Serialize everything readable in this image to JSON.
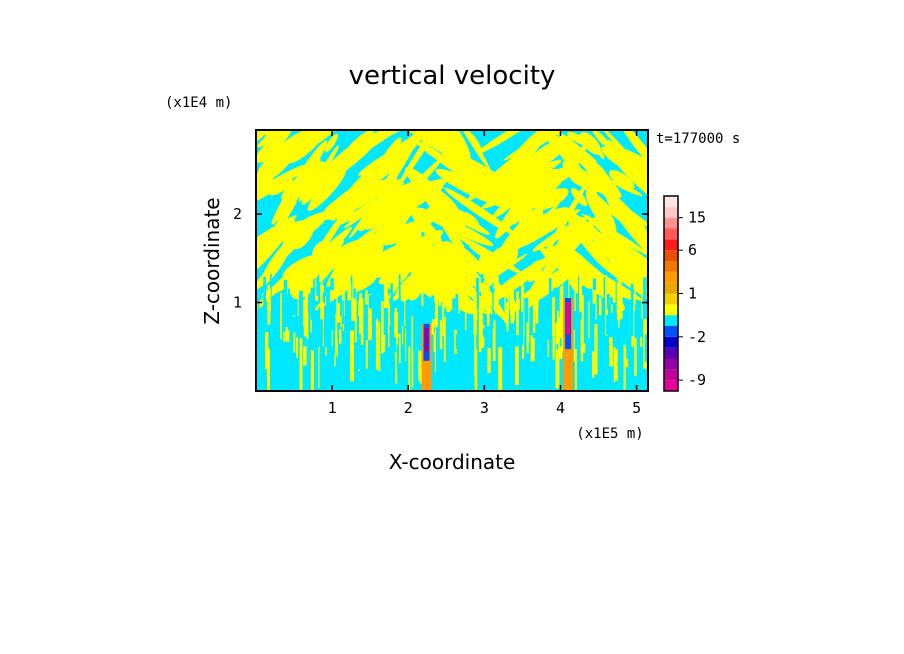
{
  "chart_data": {
    "type": "heatmap",
    "title": "vertical velocity",
    "xlabel": "X-coordinate",
    "ylabel": "Z-coordinate",
    "x_unit": "(x1E5 m)",
    "y_unit": "(x1E4 m)",
    "time_label": "t=177000 s",
    "xlim": [
      0,
      5.15
    ],
    "ylim": [
      0,
      2.95
    ],
    "x_ticks": [
      "1",
      "2",
      "3",
      "4",
      "5"
    ],
    "y_ticks": [
      "1",
      "2"
    ],
    "x_tick_values": [
      1,
      2,
      3,
      4,
      5
    ],
    "y_tick_values": [
      1,
      2
    ],
    "colorbar": {
      "tick_labels": [
        "15",
        "6",
        "1",
        "-2",
        "-9"
      ],
      "tick_values": [
        15,
        6,
        1,
        -2,
        -9
      ],
      "levels": [
        -12,
        -9,
        -6,
        -4,
        -3,
        -2,
        -1,
        0,
        0.5,
        1,
        2,
        3,
        4,
        6,
        9,
        12,
        15,
        20,
        25
      ],
      "colors": [
        "#e8009a",
        "#c4009c",
        "#9600a8",
        "#5a00b4",
        "#0000c8",
        "#0050ff",
        "#00e8ff",
        "#ffff00",
        "#f5d000",
        "#e8a800",
        "#ff9a00",
        "#f07800",
        "#e85000",
        "#ff1a1a",
        "#ff5a5a",
        "#ff9090",
        "#ffc8c8",
        "#ffe6e6"
      ]
    },
    "plumes": [
      {
        "x": 2.24,
        "z_top": 0.76,
        "min_w": -6
      },
      {
        "x": 4.1,
        "z_top": 1.05,
        "min_w": -12
      }
    ]
  },
  "colors": {
    "positive_field": "#ffff00",
    "negative_field": "#00e8ff"
  }
}
